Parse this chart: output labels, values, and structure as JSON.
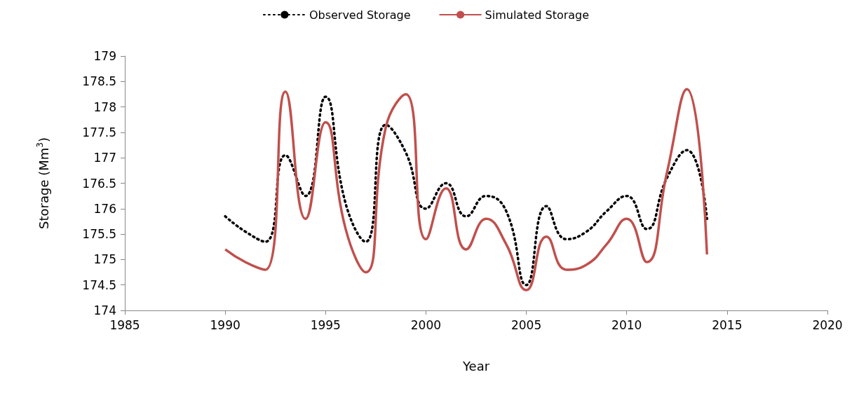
{
  "chart_data": {
    "type": "line",
    "xlabel": "Year",
    "ylabel": "Storage (Mm$^{3}$)",
    "x": [
      1990,
      1991,
      1992,
      1993,
      1994,
      1995,
      1996,
      1997,
      1998,
      1999,
      2000,
      2001,
      2002,
      2003,
      2004,
      2005,
      2006,
      2007,
      2008,
      2009,
      2010,
      2011,
      2012,
      2013,
      2014
    ],
    "series": [
      {
        "name": "Observed Storage",
        "color": "#000000",
        "line_style": "dotted",
        "values": [
          175.85,
          175.55,
          175.35,
          177.05,
          176.25,
          178.2,
          176.1,
          175.35,
          177.65,
          177.1,
          176.0,
          176.5,
          175.85,
          176.25,
          175.95,
          174.5,
          176.05,
          175.4,
          175.55,
          175.95,
          176.25,
          175.6,
          176.6,
          177.15,
          175.8
        ]
      },
      {
        "name": "Simulated Storage",
        "color": "#c0504d",
        "line_style": "solid",
        "values": [
          175.2,
          174.95,
          174.8,
          178.3,
          175.8,
          177.7,
          175.6,
          174.75,
          177.6,
          178.25,
          175.4,
          176.4,
          175.2,
          175.8,
          175.3,
          174.4,
          175.45,
          174.8,
          174.9,
          175.3,
          175.8,
          174.95,
          176.7,
          178.35,
          175.1
        ]
      }
    ],
    "xlim": [
      1985,
      2020
    ],
    "xticks": [
      1985,
      1990,
      1995,
      2000,
      2005,
      2010,
      2015,
      2020
    ],
    "ylim": [
      174,
      179
    ],
    "yticks": [
      174,
      174.5,
      175,
      175.5,
      176,
      176.5,
      177,
      177.5,
      178,
      178.5,
      179
    ],
    "grid": false,
    "legend": "top",
    "marker": "none"
  }
}
